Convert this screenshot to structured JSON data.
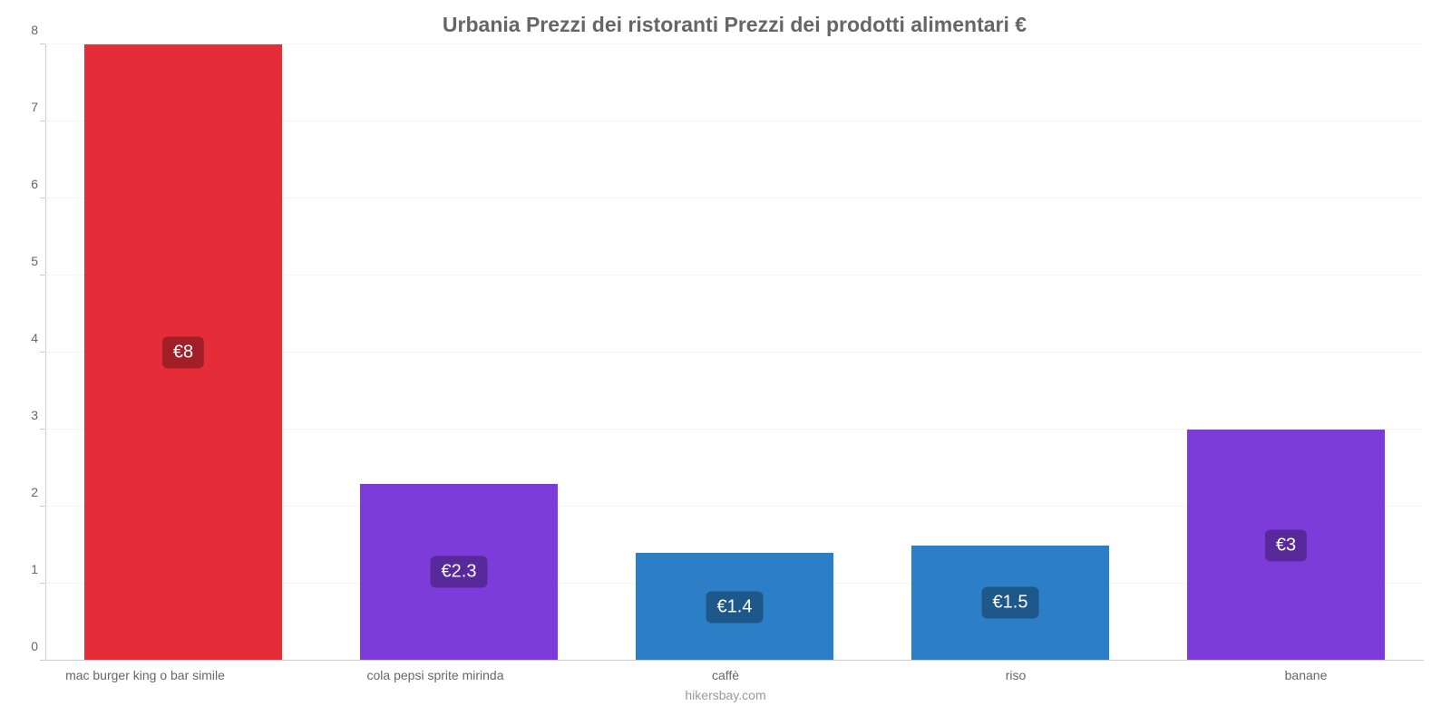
{
  "chart": {
    "type": "bar",
    "title": "Urbania Prezzi dei ristoranti Prezzi dei prodotti alimentari €",
    "title_color": "#666666",
    "title_fontsize": 23,
    "background_color": "#ffffff",
    "grid_color": "#f5f5f5",
    "axis_line_color": "#cccccc",
    "tick_label_color": "#666666",
    "tick_fontsize": 14,
    "ylim": [
      0,
      8
    ],
    "ytick_step": 1,
    "yticks": [
      {
        "value": 0,
        "label": "0"
      },
      {
        "value": 1,
        "label": "1"
      },
      {
        "value": 2,
        "label": "2"
      },
      {
        "value": 3,
        "label": "3"
      },
      {
        "value": 4,
        "label": "4"
      },
      {
        "value": 5,
        "label": "5"
      },
      {
        "value": 6,
        "label": "6"
      },
      {
        "value": 7,
        "label": "7"
      },
      {
        "value": 8,
        "label": "8"
      }
    ],
    "bar_width_ratio": 0.72,
    "categories": [
      "mac burger king o bar simile",
      "cola pepsi sprite mirinda",
      "caffè",
      "riso",
      "banane"
    ],
    "values": [
      8,
      2.3,
      1.4,
      1.5,
      3
    ],
    "value_labels": [
      "€8",
      "€2.3",
      "€1.4",
      "€1.5",
      "€3"
    ],
    "bar_colors": [
      "#e52d39",
      "#7d3cda",
      "#2c7ec6",
      "#2c7ec6",
      "#7d3cda"
    ],
    "label_bg_colors": [
      "#a31f27",
      "#57299a",
      "#1e588a",
      "#1e588a",
      "#57299a"
    ],
    "label_text_color": "#ffffff",
    "label_fontsize": 20,
    "credits": "hikersbay.com",
    "credits_color": "#999999"
  }
}
